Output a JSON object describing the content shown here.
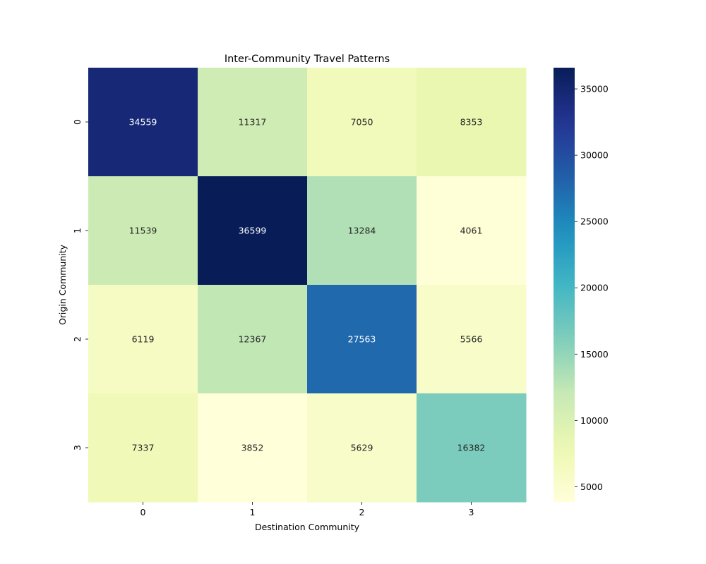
{
  "chart_data": {
    "type": "heatmap",
    "title": "Inter-Community Travel Patterns",
    "xlabel": "Destination Community",
    "ylabel": "Origin Community",
    "x_categories": [
      "0",
      "1",
      "2",
      "3"
    ],
    "y_categories": [
      "0",
      "1",
      "2",
      "3"
    ],
    "values": [
      [
        34559,
        11317,
        7050,
        8353
      ],
      [
        11539,
        36599,
        13284,
        4061
      ],
      [
        6119,
        12367,
        27563,
        5566
      ],
      [
        7337,
        3852,
        5629,
        16382
      ]
    ],
    "colormap": "YlGnBu",
    "colorbar": {
      "min": 3852,
      "max": 36599,
      "ticks": [
        5000,
        10000,
        15000,
        20000,
        25000,
        30000,
        35000
      ],
      "tick_labels": [
        "5000",
        "10000",
        "15000",
        "20000",
        "25000",
        "30000",
        "35000"
      ]
    },
    "annotation_colors": {
      "light": "#ffffff",
      "dark": "#262626"
    }
  }
}
